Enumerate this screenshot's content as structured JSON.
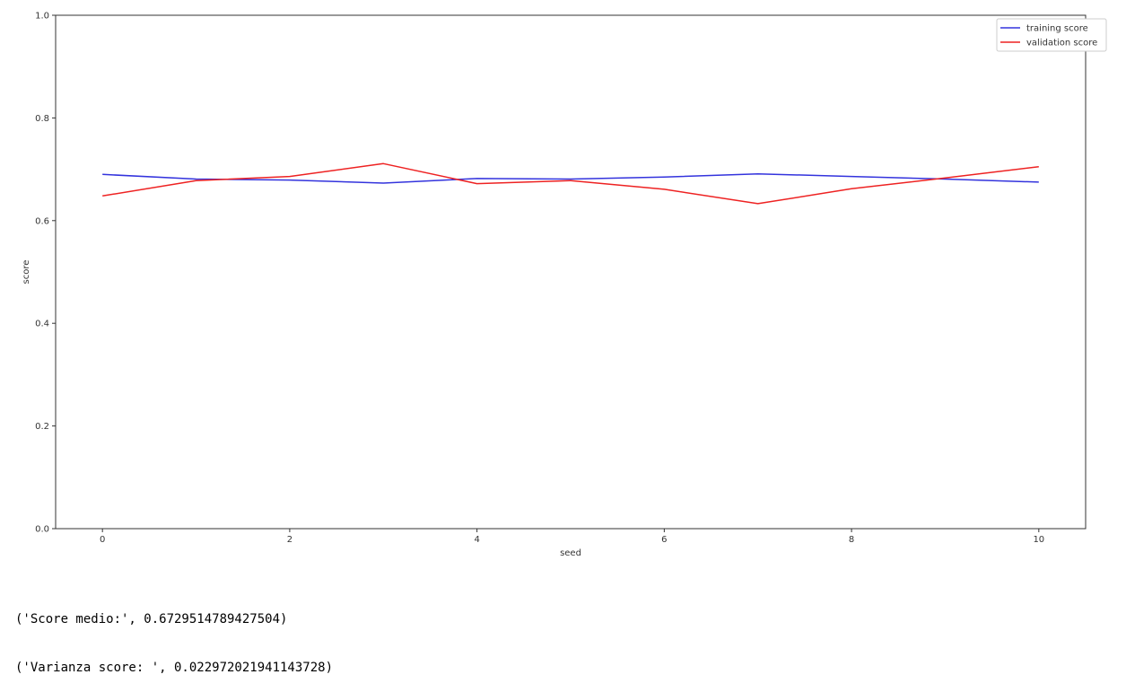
{
  "chart_data": {
    "type": "line",
    "xlabel": "seed",
    "ylabel": "score",
    "xlim": [
      -0.5,
      10.5
    ],
    "ylim": [
      0.0,
      1.0
    ],
    "xticks": [
      0,
      2,
      4,
      6,
      8,
      10
    ],
    "yticks": [
      0.0,
      0.2,
      0.4,
      0.6,
      0.8,
      1.0
    ],
    "ytick_labels": [
      "0.0",
      "0.2",
      "0.4",
      "0.6",
      "0.8",
      "1.0"
    ],
    "grid": false,
    "legend_position": "top-right",
    "x": [
      0,
      1,
      2,
      3,
      4,
      5,
      6,
      7,
      8,
      9,
      10
    ],
    "series": [
      {
        "name": "training score",
        "color": "#3333dd",
        "values": [
          0.69,
          0.681,
          0.679,
          0.673,
          0.682,
          0.681,
          0.685,
          0.691,
          0.686,
          0.681,
          0.675
        ]
      },
      {
        "name": "validation score",
        "color": "#ee2222",
        "values": [
          0.648,
          0.678,
          0.686,
          0.711,
          0.672,
          0.678,
          0.661,
          0.633,
          0.662,
          0.683,
          0.705
        ]
      }
    ]
  },
  "output": {
    "lines": [
      "('Score medio:', 0.6729514789427504)",
      "('Varianza score: ', 0.022972021941143728)"
    ]
  }
}
